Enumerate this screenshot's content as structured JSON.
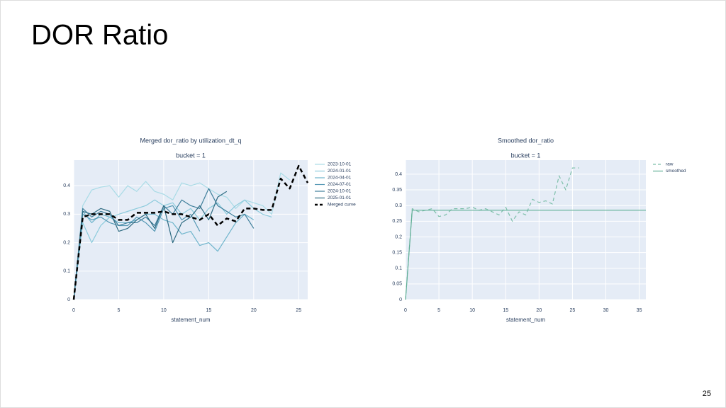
{
  "slide": {
    "title": "DOR Ratio",
    "page_number": 25
  },
  "chart_data": [
    {
      "type": "line",
      "title": "Merged dor_ratio by utilization_dt_q",
      "subtitle": "bucket = 1",
      "x_label": "statement_num",
      "x": [
        0,
        1,
        2,
        3,
        4,
        5,
        6,
        7,
        8,
        9,
        10,
        11,
        12,
        13,
        14,
        15,
        16,
        17,
        18,
        19,
        20,
        21,
        22,
        23,
        24,
        25,
        26
      ],
      "xlim": [
        0,
        26
      ],
      "xticks": [
        0,
        5,
        10,
        15,
        20,
        25
      ],
      "ylim": [
        0,
        0.49
      ],
      "yticks": [
        0,
        0.1,
        0.2,
        0.3,
        0.4
      ],
      "grid": true,
      "legend": "outside-right",
      "series": [
        {
          "name": "2023-10-01",
          "color": "#a9dbe6",
          "dash": false,
          "values": [
            0,
            0.33,
            0.385,
            0.395,
            0.4,
            0.36,
            0.4,
            0.38,
            0.415,
            0.38,
            0.37,
            0.35,
            0.41,
            0.4,
            0.41,
            0.39,
            0.37,
            0.36,
            0.32,
            0.35,
            0.34,
            0.33,
            0.3,
            0.445,
            0.42,
            null,
            null
          ]
        },
        {
          "name": "2024-01-01",
          "color": "#8ccbdc",
          "dash": false,
          "values": [
            0,
            0.27,
            0.2,
            0.26,
            0.29,
            0.3,
            0.31,
            0.32,
            0.33,
            0.35,
            0.33,
            0.34,
            0.3,
            0.32,
            0.28,
            0.32,
            0.34,
            0.3,
            0.33,
            0.35,
            0.32,
            0.3,
            0.29,
            null,
            null,
            null,
            null
          ]
        },
        {
          "name": "2024-04-01",
          "color": "#6fb5cc",
          "dash": false,
          "values": [
            0,
            0.31,
            0.27,
            0.3,
            0.29,
            0.27,
            0.27,
            0.28,
            0.3,
            0.3,
            0.28,
            0.27,
            0.23,
            0.24,
            0.19,
            0.2,
            0.17,
            0.22,
            0.27,
            0.3,
            0.28,
            null,
            null,
            null,
            null,
            null,
            null
          ]
        },
        {
          "name": "2024-07-01",
          "color": "#5598b4",
          "dash": false,
          "values": [
            0,
            0.3,
            0.28,
            0.29,
            0.27,
            0.26,
            0.26,
            0.29,
            0.27,
            0.24,
            0.32,
            0.33,
            0.28,
            0.3,
            0.24,
            null,
            null,
            null,
            null,
            null,
            null,
            null,
            null,
            null,
            null,
            null,
            null
          ]
        },
        {
          "name": "2024-10-01",
          "color": "#3f7f9b",
          "dash": false,
          "values": [
            0,
            0.32,
            0.29,
            0.31,
            0.3,
            0.26,
            0.27,
            0.27,
            0.29,
            0.26,
            0.33,
            0.3,
            0.35,
            0.33,
            0.32,
            0.39,
            0.33,
            0.31,
            0.29,
            0.3,
            0.25,
            null,
            null,
            null,
            null,
            null,
            null
          ]
        },
        {
          "name": "2025-01-01",
          "color": "#2e6b82",
          "dash": false,
          "values": [
            0,
            0.31,
            0.3,
            0.32,
            0.31,
            0.24,
            0.25,
            0.28,
            0.3,
            0.25,
            0.33,
            0.2,
            0.27,
            0.29,
            0.33,
            0.28,
            0.36,
            0.38,
            null,
            null,
            null,
            null,
            null,
            null,
            null,
            null,
            null
          ]
        },
        {
          "name": "Merged curve",
          "color": "#000000",
          "dash": true,
          "values": [
            0,
            0.29,
            0.3,
            0.3,
            0.3,
            0.28,
            0.28,
            0.305,
            0.305,
            0.305,
            0.31,
            0.3,
            0.3,
            0.29,
            0.28,
            0.3,
            0.26,
            0.285,
            0.275,
            0.32,
            0.32,
            0.315,
            0.315,
            0.425,
            0.39,
            0.47,
            0.41
          ]
        }
      ]
    },
    {
      "type": "line",
      "title": "Smoothed dor_ratio",
      "subtitle": "bucket = 1",
      "x_label": "statement_num",
      "xlim": [
        0,
        36
      ],
      "xticks": [
        0,
        5,
        10,
        15,
        20,
        25,
        30,
        35
      ],
      "ylim": [
        0,
        0.445
      ],
      "yticks": [
        0,
        0.05,
        0.1,
        0.15,
        0.2,
        0.25,
        0.3,
        0.35,
        0.4
      ],
      "grid": true,
      "legend": "outside-right",
      "series": [
        {
          "name": "raw",
          "color": "#7cbfa9",
          "dash": true,
          "x": [
            0,
            1,
            2,
            3,
            4,
            5,
            6,
            7,
            8,
            9,
            10,
            11,
            12,
            13,
            14,
            15,
            16,
            17,
            18,
            19,
            20,
            21,
            22,
            23,
            24,
            25,
            26
          ],
          "values": [
            0,
            0.29,
            0.28,
            0.285,
            0.29,
            0.265,
            0.27,
            0.29,
            0.29,
            0.29,
            0.295,
            0.285,
            0.29,
            0.28,
            0.27,
            0.295,
            0.25,
            0.28,
            0.27,
            0.32,
            0.31,
            0.315,
            0.305,
            0.395,
            0.35,
            0.42,
            0.42
          ]
        },
        {
          "name": "smoothed",
          "color": "#5fae95",
          "dash": false,
          "x": [
            0,
            1,
            36
          ],
          "values": [
            0,
            0.285,
            0.285
          ]
        }
      ]
    }
  ]
}
